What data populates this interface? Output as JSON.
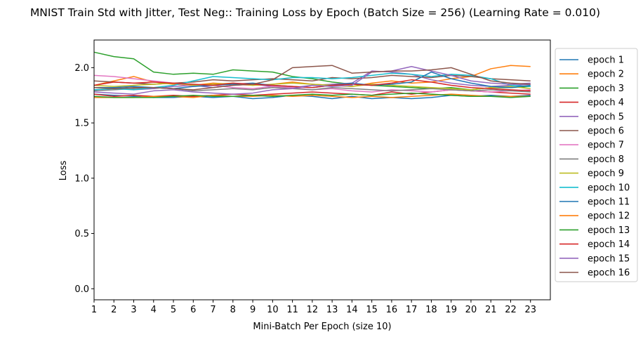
{
  "chart_data": {
    "type": "line",
    "title": "MNIST Train Std with Jitter, Test Neg:: Training Loss by Epoch (Batch Size = 256) (Learning Rate = 0.010)",
    "xlabel": "Mini-Batch Per Epoch (size 10)",
    "ylabel": "Loss",
    "xlim": [
      1,
      24
    ],
    "ylim": [
      -0.1,
      2.25
    ],
    "xticks": [
      1,
      2,
      3,
      4,
      5,
      6,
      7,
      8,
      9,
      10,
      11,
      12,
      13,
      14,
      15,
      16,
      17,
      18,
      19,
      20,
      21,
      22,
      23
    ],
    "yticks": [
      0.0,
      0.5,
      1.0,
      1.5,
      2.0
    ],
    "ytick_labels": [
      "0.0",
      "0.5",
      "1.0",
      "1.5",
      "2.0"
    ],
    "grid": false,
    "legend_position": "outside-right",
    "x": [
      1,
      2,
      3,
      4,
      5,
      6,
      7,
      8,
      9,
      10,
      11,
      12,
      13,
      14,
      15,
      16,
      17,
      18,
      19,
      20,
      21,
      22,
      23
    ],
    "series": [
      {
        "name": "epoch 1",
        "color": "#1f77b4",
        "values": [
          1.76,
          1.75,
          1.74,
          1.73,
          1.73,
          1.74,
          1.73,
          1.74,
          1.72,
          1.73,
          1.75,
          1.74,
          1.72,
          1.74,
          1.72,
          1.73,
          1.72,
          1.73,
          1.75,
          1.74,
          1.75,
          1.74,
          1.75
        ]
      },
      {
        "name": "epoch 2",
        "color": "#ff7f0e",
        "values": [
          1.84,
          1.88,
          1.92,
          1.87,
          1.85,
          1.84,
          1.86,
          1.85,
          1.84,
          1.85,
          1.87,
          1.85,
          1.84,
          1.83,
          1.86,
          1.88,
          1.86,
          1.87,
          1.9,
          1.92,
          1.99,
          2.02,
          2.01
        ]
      },
      {
        "name": "epoch 3",
        "color": "#2ca02c",
        "values": [
          2.14,
          2.1,
          2.08,
          1.96,
          1.94,
          1.95,
          1.94,
          1.98,
          1.97,
          1.96,
          1.92,
          1.9,
          1.87,
          1.85,
          1.84,
          1.83,
          1.82,
          1.81,
          1.82,
          1.8,
          1.82,
          1.82,
          1.83
        ]
      },
      {
        "name": "epoch 4",
        "color": "#d62728",
        "values": [
          1.76,
          1.74,
          1.75,
          1.74,
          1.75,
          1.74,
          1.75,
          1.76,
          1.75,
          1.76,
          1.77,
          1.78,
          1.77,
          1.76,
          1.75,
          1.78,
          1.76,
          1.78,
          1.8,
          1.79,
          1.78,
          1.77,
          1.76
        ]
      },
      {
        "name": "epoch 5",
        "color": "#9467bd",
        "values": [
          1.82,
          1.82,
          1.8,
          1.81,
          1.83,
          1.84,
          1.82,
          1.84,
          1.85,
          1.83,
          1.82,
          1.84,
          1.85,
          1.86,
          1.97,
          1.96,
          1.94,
          1.89,
          1.86,
          1.84,
          1.83,
          1.84,
          1.85
        ]
      },
      {
        "name": "epoch 6",
        "color": "#8c564b",
        "values": [
          1.88,
          1.87,
          1.86,
          1.85,
          1.86,
          1.87,
          1.89,
          1.88,
          1.89,
          1.9,
          1.89,
          1.88,
          1.91,
          1.9,
          1.91,
          1.93,
          1.92,
          1.91,
          1.93,
          1.92,
          1.9,
          1.89,
          1.88
        ]
      },
      {
        "name": "epoch 7",
        "color": "#e377c2",
        "values": [
          1.93,
          1.92,
          1.9,
          1.88,
          1.86,
          1.83,
          1.84,
          1.82,
          1.81,
          1.83,
          1.82,
          1.8,
          1.81,
          1.79,
          1.78,
          1.8,
          1.79,
          1.78,
          1.8,
          1.79,
          1.78,
          1.79,
          1.8
        ]
      },
      {
        "name": "epoch 8",
        "color": "#7f7f7f",
        "values": [
          1.79,
          1.8,
          1.81,
          1.82,
          1.81,
          1.79,
          1.8,
          1.81,
          1.8,
          1.82,
          1.81,
          1.8,
          1.82,
          1.81,
          1.8,
          1.79,
          1.8,
          1.81,
          1.8,
          1.79,
          1.8,
          1.79,
          1.78
        ]
      },
      {
        "name": "epoch 9",
        "color": "#bcbd22",
        "values": [
          1.84,
          1.83,
          1.84,
          1.85,
          1.86,
          1.84,
          1.85,
          1.86,
          1.84,
          1.85,
          1.86,
          1.85,
          1.84,
          1.83,
          1.85,
          1.84,
          1.83,
          1.82,
          1.81,
          1.8,
          1.82,
          1.83,
          1.81
        ]
      },
      {
        "name": "epoch 10",
        "color": "#17becf",
        "values": [
          1.8,
          1.81,
          1.8,
          1.82,
          1.84,
          1.88,
          1.92,
          1.91,
          1.9,
          1.89,
          1.91,
          1.91,
          1.9,
          1.91,
          1.93,
          1.95,
          1.94,
          1.92,
          1.94,
          1.93,
          1.9,
          1.84,
          1.83
        ]
      },
      {
        "name": "epoch 11",
        "color": "#1f77b4",
        "values": [
          1.82,
          1.82,
          1.83,
          1.82,
          1.81,
          1.83,
          1.84,
          1.85,
          1.86,
          1.84,
          1.83,
          1.82,
          1.84,
          1.86,
          1.84,
          1.85,
          1.87,
          1.96,
          1.9,
          1.86,
          1.83,
          1.82,
          1.84
        ]
      },
      {
        "name": "epoch 12",
        "color": "#ff7f0e",
        "values": [
          1.73,
          1.73,
          1.73,
          1.74,
          1.74,
          1.73,
          1.75,
          1.74,
          1.74,
          1.75,
          1.74,
          1.75,
          1.74,
          1.73,
          1.74,
          1.73,
          1.74,
          1.75,
          1.76,
          1.75,
          1.74,
          1.74,
          1.74
        ]
      },
      {
        "name": "epoch 13",
        "color": "#2ca02c",
        "values": [
          1.74,
          1.73,
          1.73,
          1.73,
          1.74,
          1.75,
          1.74,
          1.74,
          1.75,
          1.74,
          1.75,
          1.76,
          1.75,
          1.76,
          1.75,
          1.76,
          1.77,
          1.76,
          1.75,
          1.74,
          1.74,
          1.73,
          1.74
        ]
      },
      {
        "name": "epoch 14",
        "color": "#d62728",
        "values": [
          1.84,
          1.87,
          1.86,
          1.87,
          1.86,
          1.85,
          1.84,
          1.86,
          1.85,
          1.84,
          1.83,
          1.82,
          1.84,
          1.85,
          1.84,
          1.86,
          1.89,
          1.87,
          1.84,
          1.82,
          1.81,
          1.8,
          1.79
        ]
      },
      {
        "name": "epoch 15",
        "color": "#9467bd",
        "values": [
          1.78,
          1.77,
          1.76,
          1.79,
          1.8,
          1.78,
          1.77,
          1.76,
          1.77,
          1.8,
          1.81,
          1.84,
          1.83,
          1.84,
          1.96,
          1.97,
          2.01,
          1.97,
          1.93,
          1.88,
          1.86,
          1.85,
          1.86
        ]
      },
      {
        "name": "epoch 16",
        "color": "#8c564b",
        "values": [
          1.82,
          1.81,
          1.82,
          1.82,
          1.81,
          1.8,
          1.82,
          1.84,
          1.85,
          1.89,
          2.0,
          2.01,
          2.02,
          1.95,
          1.96,
          1.97,
          1.97,
          1.98,
          2.0,
          1.94,
          1.88,
          1.86,
          1.85
        ]
      }
    ]
  }
}
